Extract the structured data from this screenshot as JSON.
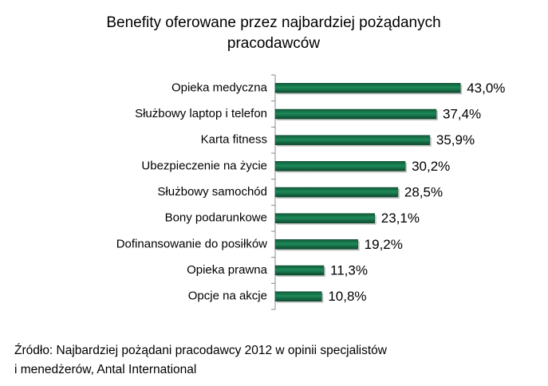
{
  "chart_data": {
    "type": "bar",
    "orientation": "horizontal",
    "title": [
      "Benefity oferowane przez najbardziej pożądanych",
      "pracodawców"
    ],
    "categories": [
      "Opieka medyczna",
      "Służbowy laptop i telefon",
      "Karta fitness",
      "Ubezpieczenie na życie",
      "Służbowy samochód",
      "Bony podarunkowe",
      "Dofinansowanie do posiłków",
      "Opieka prawna",
      "Opcje na akcje"
    ],
    "values": [
      43.0,
      37.4,
      35.9,
      30.2,
      28.5,
      23.1,
      19.2,
      11.3,
      10.8
    ],
    "value_labels": [
      "43,0%",
      "37,4%",
      "35,9%",
      "30,2%",
      "28,5%",
      "23,1%",
      "19,2%",
      "11,3%",
      "10,8%"
    ],
    "color": "#1e8a5a",
    "source": [
      "Źródło: Najbardziej pożądani pracodawcy 2012 w opinii specjalistów",
      "i menedżerów, Antal International"
    ]
  }
}
